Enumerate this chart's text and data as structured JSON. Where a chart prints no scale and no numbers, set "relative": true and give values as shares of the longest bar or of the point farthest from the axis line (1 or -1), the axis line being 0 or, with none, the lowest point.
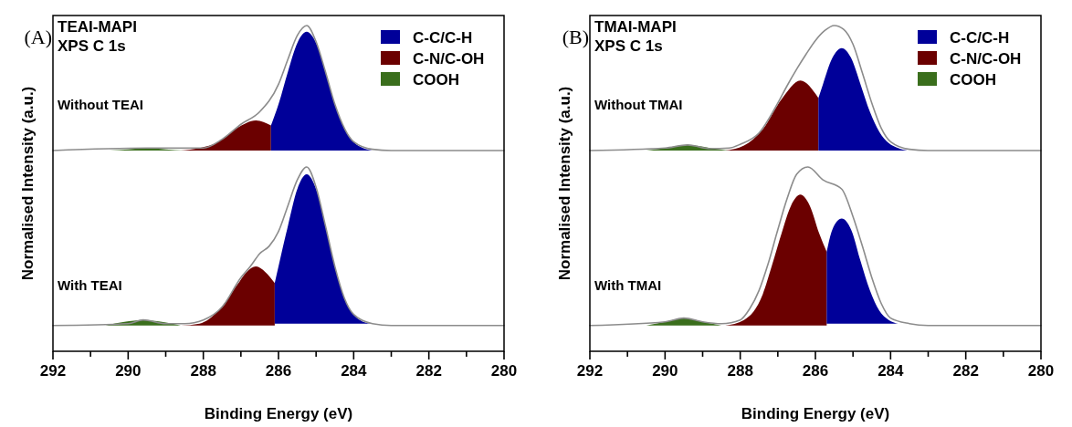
{
  "chart_data": [
    {
      "type": "area",
      "title": "TEAI-MAPI",
      "subtitle": "XPS C 1s",
      "annotations": [
        "(A)",
        "Without TEAI"
      ],
      "relative": true,
      "xlim": [
        292,
        280
      ],
      "tick_labels": false,
      "legend": "top right",
      "series": [
        {
          "name": "C-C/C-H",
          "color": "#000099",
          "x": [
            286.2,
            286.0,
            285.75,
            285.5,
            285.25,
            285.0,
            284.75,
            284.5,
            284.25,
            284.0,
            283.75,
            283.5
          ],
          "values": [
            0.2,
            0.37,
            0.63,
            0.86,
            0.95,
            0.86,
            0.63,
            0.37,
            0.18,
            0.07,
            0.02,
            0
          ]
        },
        {
          "name": "C-N/C-OH",
          "color": "#6b0000",
          "x": [
            288.6,
            288.1,
            287.6,
            287.1,
            286.6,
            286.2
          ],
          "values": [
            0,
            0.02,
            0.07,
            0.18,
            0.24,
            0.2
          ]
        },
        {
          "name": "COOH",
          "color": "#3a6e1c",
          "x": [
            290.5,
            290.0,
            289.5,
            289.0,
            288.5
          ],
          "values": [
            0,
            0.01,
            0.02,
            0.01,
            0
          ]
        },
        {
          "type": "line",
          "color": "#8c8c8c",
          "x": [
            292,
            289.5,
            288.0,
            287.5,
            287.0,
            286.5,
            286.0,
            285.75,
            285.5,
            285.25,
            285.0,
            284.75,
            284.5,
            284.0,
            283.5,
            283.0,
            280
          ],
          "values": [
            0,
            0.02,
            0.02,
            0.09,
            0.21,
            0.31,
            0.53,
            0.73,
            0.92,
            1.0,
            0.87,
            0.63,
            0.37,
            0.07,
            0.01,
            0,
            0
          ]
        }
      ]
    },
    {
      "type": "area",
      "xlabel": "Binding Energy (eV)",
      "ylabel": "Normalised Intensity (a.u.)",
      "annotations": [
        "With TEAI"
      ],
      "relative": true,
      "xlim": [
        292,
        280
      ],
      "tick_labels": "x",
      "xticks": [
        292,
        {
          "value": 291,
          "label": null
        },
        290,
        {
          "value": 289,
          "label": null
        },
        288,
        {
          "value": 287,
          "label": null
        },
        286,
        {
          "value": 285,
          "label": null
        },
        284,
        {
          "value": 283,
          "label": null
        },
        282,
        {
          "value": 281,
          "label": null
        },
        280
      ],
      "series": [
        {
          "color": "#000099",
          "x": [
            286.1,
            286.0,
            285.75,
            285.5,
            285.25,
            285.0,
            284.75,
            284.5,
            284.25,
            284.0,
            283.75,
            283.5
          ],
          "values": [
            0.37,
            0.46,
            0.68,
            0.88,
            0.96,
            0.88,
            0.68,
            0.46,
            0.29,
            0.2,
            0.16,
            0.15
          ]
        },
        {
          "color": "#6b0000",
          "x": [
            288.6,
            288.1,
            287.6,
            287.1,
            286.85,
            286.6,
            286.35,
            286.1
          ],
          "values": [
            0.14,
            0.15,
            0.22,
            0.36,
            0.43,
            0.46,
            0.43,
            0.37
          ]
        },
        {
          "color": "#3a6e1c",
          "x": [
            290.6,
            290.1,
            289.6,
            289.1,
            288.6
          ],
          "values": [
            0.14,
            0.16,
            0.17,
            0.16,
            0.14
          ]
        },
        {
          "type": "line",
          "color": "#8c8c8c",
          "x": [
            292,
            290.0,
            289.6,
            289.0,
            288.5,
            288.0,
            287.5,
            287.0,
            286.75,
            286.5,
            286.25,
            286.0,
            285.75,
            285.5,
            285.25,
            285.0,
            284.75,
            284.5,
            284.25,
            284.0,
            283.5,
            283.0,
            280
          ],
          "values": [
            0.14,
            0.15,
            0.17,
            0.15,
            0.15,
            0.17,
            0.24,
            0.4,
            0.46,
            0.53,
            0.57,
            0.65,
            0.79,
            0.93,
            1.0,
            0.89,
            0.68,
            0.46,
            0.29,
            0.2,
            0.15,
            0.14,
            0.14
          ]
        }
      ]
    },
    {
      "type": "area",
      "title": "TMAI-MAPI",
      "subtitle": "XPS C 1s",
      "annotations": [
        "(B)",
        "Without TMAI"
      ],
      "relative": true,
      "xlim": [
        292,
        280
      ],
      "tick_labels": false,
      "legend": "top right",
      "series": [
        {
          "name": "C-C/C-H",
          "color": "#000099",
          "x": [
            285.92,
            285.8,
            285.55,
            285.3,
            285.05,
            284.8,
            284.55,
            284.3,
            284.05,
            283.8,
            283.55
          ],
          "values": [
            0.42,
            0.53,
            0.74,
            0.82,
            0.74,
            0.53,
            0.31,
            0.15,
            0.06,
            0.02,
            0
          ]
        },
        {
          "name": "C-N/C-OH",
          "color": "#6b0000",
          "x": [
            288.4,
            287.9,
            287.4,
            286.9,
            286.4,
            285.92
          ],
          "values": [
            0,
            0.04,
            0.17,
            0.41,
            0.56,
            0.42
          ]
        },
        {
          "name": "COOH",
          "color": "#3a6e1c",
          "x": [
            290.5,
            290.0,
            289.4,
            288.8,
            288.3
          ],
          "values": [
            0,
            0.02,
            0.045,
            0.02,
            0
          ]
        },
        {
          "type": "line",
          "color": "#8c8c8c",
          "x": [
            292,
            290.0,
            289.4,
            288.8,
            288.3,
            288.0,
            287.5,
            287.0,
            286.75,
            286.5,
            286.25,
            286.0,
            285.75,
            285.5,
            285.25,
            285.0,
            284.75,
            284.5,
            284.25,
            284.0,
            283.5,
            283.0,
            280
          ],
          "values": [
            0,
            0.02,
            0.045,
            0.015,
            0.02,
            0.05,
            0.14,
            0.38,
            0.52,
            0.65,
            0.77,
            0.88,
            0.96,
            1.0,
            0.97,
            0.85,
            0.62,
            0.38,
            0.18,
            0.07,
            0.01,
            0,
            0
          ]
        }
      ]
    },
    {
      "type": "area",
      "xlabel": "Binding Energy (eV)",
      "ylabel": "Normalised Intensity (a.u.)",
      "annotations": [
        "With TMAI"
      ],
      "relative": true,
      "xlim": [
        292,
        280
      ],
      "tick_labels": "x",
      "xticks": [
        292,
        {
          "value": 291,
          "label": null
        },
        290,
        {
          "value": 289,
          "label": null
        },
        288,
        {
          "value": 287,
          "label": null
        },
        286,
        {
          "value": 285,
          "label": null
        },
        284,
        {
          "value": 283,
          "label": null
        },
        282,
        {
          "value": 281,
          "label": null
        },
        280
      ],
      "series": [
        {
          "color": "#000099",
          "x": [
            285.7,
            285.55,
            285.3,
            285.05,
            284.8,
            284.55,
            284.3,
            284.05,
            283.8
          ],
          "values": [
            0.54,
            0.66,
            0.72,
            0.66,
            0.49,
            0.33,
            0.22,
            0.17,
            0.15
          ]
        },
        {
          "color": "#6b0000",
          "x": [
            288.4,
            287.9,
            287.4,
            287.15,
            286.9,
            286.65,
            286.4,
            286.15,
            285.9,
            285.7
          ],
          "values": [
            0.14,
            0.17,
            0.31,
            0.47,
            0.64,
            0.79,
            0.85,
            0.79,
            0.64,
            0.54
          ]
        },
        {
          "color": "#3a6e1c",
          "x": [
            290.5,
            290.0,
            289.5,
            289.0,
            288.5
          ],
          "values": [
            0.14,
            0.16,
            0.18,
            0.16,
            0.14
          ]
        },
        {
          "type": "line",
          "color": "#8c8c8c",
          "x": [
            292,
            290.0,
            289.5,
            289.0,
            288.5,
            288.0,
            287.75,
            287.5,
            287.25,
            287.0,
            286.75,
            286.5,
            286.2,
            285.8,
            285.3,
            285.0,
            284.75,
            284.5,
            284.25,
            284.0,
            283.5,
            283.0,
            280
          ],
          "values": [
            0.14,
            0.16,
            0.18,
            0.16,
            0.15,
            0.17,
            0.23,
            0.33,
            0.48,
            0.66,
            0.83,
            0.96,
            1.0,
            0.93,
            0.88,
            0.73,
            0.57,
            0.4,
            0.26,
            0.18,
            0.15,
            0.14,
            0.14
          ]
        }
      ]
    }
  ]
}
